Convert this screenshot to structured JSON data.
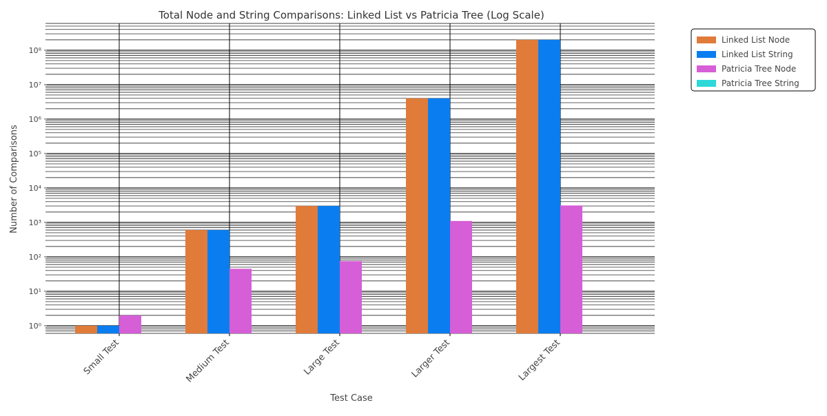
{
  "chart_data": {
    "type": "bar",
    "title": "Total Node and String Comparisons: Linked List vs Patricia Tree (Log Scale)",
    "xlabel": "Test Case",
    "ylabel": "Number of Comparisons",
    "y_scale": "log",
    "ylim": [
      0.6,
      600000000
    ],
    "grid": true,
    "legend_position": "top-right, outside plot area",
    "categories": [
      "Small Test",
      "Medium Test",
      "Large Test",
      "Larger Test",
      "Largest Test"
    ],
    "y_tick_labels": [
      "10⁰",
      "10¹",
      "10²",
      "10³",
      "10⁴",
      "10⁵",
      "10⁶",
      "10⁷",
      "10⁸"
    ],
    "series": [
      {
        "name": "Linked List Node",
        "color": "#e07b39",
        "values": [
          1,
          600,
          3000,
          4000000,
          200000000
        ]
      },
      {
        "name": "Linked List String",
        "color": "#0a7ef0",
        "values": [
          1,
          600,
          3000,
          4000000,
          200000000
        ]
      },
      {
        "name": "Patricia Tree Node",
        "color": "#d65ed6",
        "values": [
          2,
          45,
          75,
          1100,
          3100
        ]
      },
      {
        "name": "Patricia Tree String",
        "color": "#2ed8d8",
        "values": [
          0,
          0,
          0,
          0,
          0
        ]
      }
    ]
  }
}
